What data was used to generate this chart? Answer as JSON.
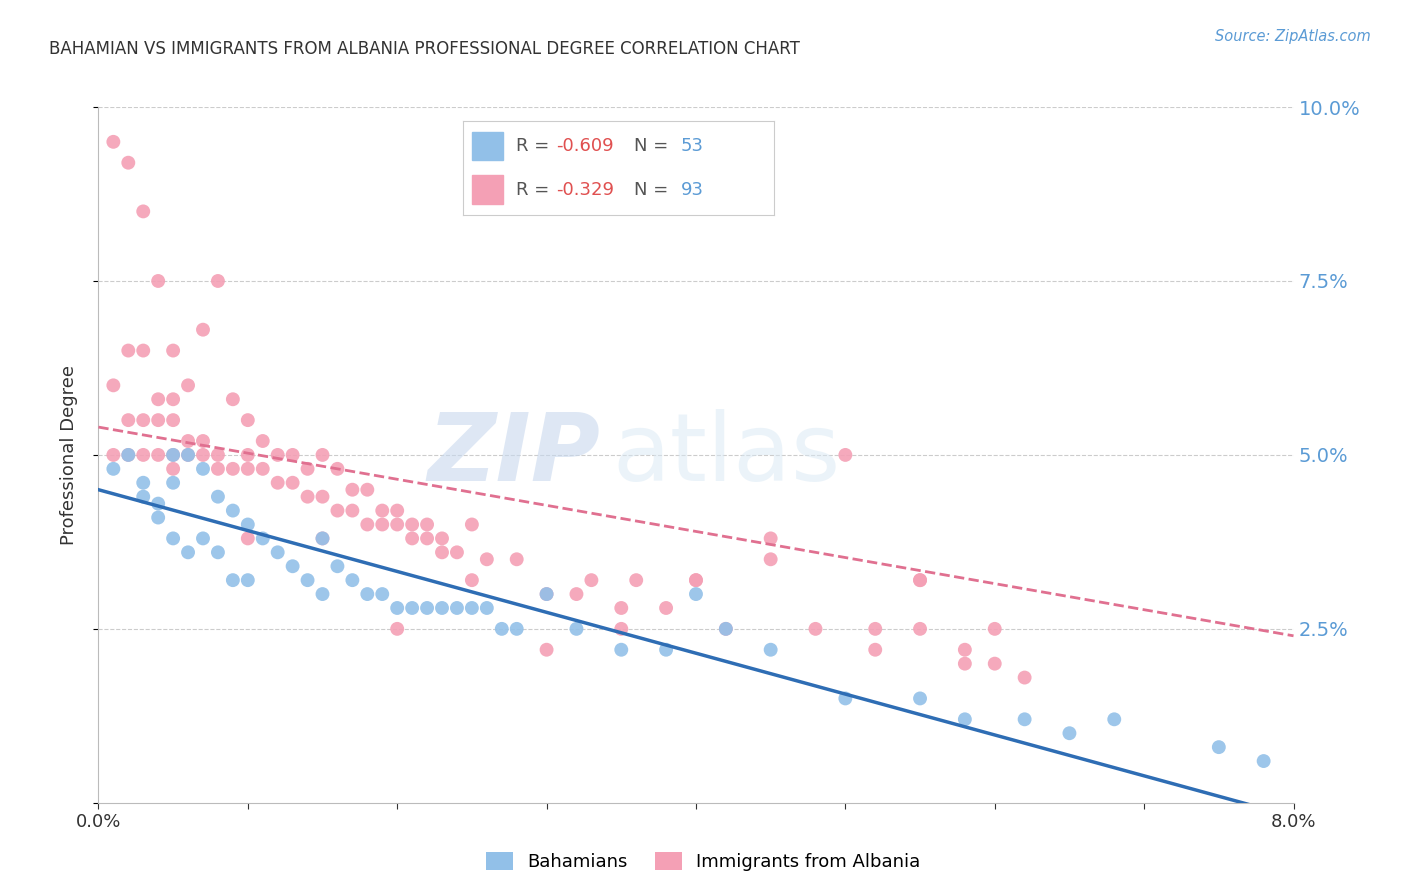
{
  "title": "BAHAMIAN VS IMMIGRANTS FROM ALBANIA PROFESSIONAL DEGREE CORRELATION CHART",
  "source": "Source: ZipAtlas.com",
  "ylabel": "Professional Degree",
  "x_min": 0.0,
  "x_max": 0.08,
  "y_min": 0.0,
  "y_max": 0.1,
  "bahamian_R": -0.609,
  "bahamian_N": 53,
  "albania_R": -0.329,
  "albania_N": 93,
  "bahamian_color": "#92C0E8",
  "albania_color": "#F4A0B5",
  "bahamian_line_color": "#2E6DB4",
  "albania_line_color": "#E07090",
  "legend_label_1": "Bahamians",
  "legend_label_2": "Immigrants from Albania",
  "watermark_zip": "ZIP",
  "watermark_atlas": "atlas",
  "bah_line_x0": 0.0,
  "bah_line_y0": 0.045,
  "bah_line_x1": 0.08,
  "bah_line_y1": -0.002,
  "alb_line_x0": 0.0,
  "alb_line_y0": 0.054,
  "alb_line_x1": 0.08,
  "alb_line_y1": 0.024,
  "bahamian_x": [
    0.001,
    0.002,
    0.003,
    0.003,
    0.004,
    0.004,
    0.005,
    0.005,
    0.005,
    0.006,
    0.006,
    0.007,
    0.007,
    0.008,
    0.008,
    0.009,
    0.009,
    0.01,
    0.01,
    0.011,
    0.012,
    0.013,
    0.014,
    0.015,
    0.015,
    0.016,
    0.017,
    0.018,
    0.019,
    0.02,
    0.021,
    0.022,
    0.023,
    0.024,
    0.025,
    0.026,
    0.027,
    0.028,
    0.03,
    0.032,
    0.035,
    0.038,
    0.04,
    0.042,
    0.045,
    0.05,
    0.055,
    0.058,
    0.062,
    0.065,
    0.068,
    0.075,
    0.078
  ],
  "bahamian_y": [
    0.048,
    0.05,
    0.046,
    0.044,
    0.043,
    0.041,
    0.05,
    0.046,
    0.038,
    0.05,
    0.036,
    0.048,
    0.038,
    0.044,
    0.036,
    0.042,
    0.032,
    0.04,
    0.032,
    0.038,
    0.036,
    0.034,
    0.032,
    0.038,
    0.03,
    0.034,
    0.032,
    0.03,
    0.03,
    0.028,
    0.028,
    0.028,
    0.028,
    0.028,
    0.028,
    0.028,
    0.025,
    0.025,
    0.03,
    0.025,
    0.022,
    0.022,
    0.03,
    0.025,
    0.022,
    0.015,
    0.015,
    0.012,
    0.012,
    0.01,
    0.012,
    0.008,
    0.006
  ],
  "albania_x": [
    0.001,
    0.001,
    0.001,
    0.002,
    0.002,
    0.002,
    0.002,
    0.003,
    0.003,
    0.003,
    0.003,
    0.004,
    0.004,
    0.004,
    0.004,
    0.005,
    0.005,
    0.005,
    0.005,
    0.006,
    0.006,
    0.006,
    0.007,
    0.007,
    0.007,
    0.008,
    0.008,
    0.008,
    0.009,
    0.009,
    0.01,
    0.01,
    0.01,
    0.011,
    0.011,
    0.012,
    0.012,
    0.013,
    0.013,
    0.014,
    0.014,
    0.015,
    0.015,
    0.016,
    0.016,
    0.017,
    0.017,
    0.018,
    0.018,
    0.019,
    0.019,
    0.02,
    0.02,
    0.021,
    0.021,
    0.022,
    0.022,
    0.023,
    0.023,
    0.024,
    0.025,
    0.026,
    0.028,
    0.03,
    0.032,
    0.033,
    0.035,
    0.036,
    0.038,
    0.04,
    0.042,
    0.045,
    0.048,
    0.05,
    0.052,
    0.055,
    0.055,
    0.058,
    0.06,
    0.062,
    0.055,
    0.06,
    0.058,
    0.052,
    0.045,
    0.04,
    0.035,
    0.03,
    0.025,
    0.02,
    0.015,
    0.01,
    0.005
  ],
  "albania_y": [
    0.05,
    0.06,
    0.095,
    0.05,
    0.055,
    0.065,
    0.092,
    0.05,
    0.055,
    0.065,
    0.085,
    0.05,
    0.055,
    0.058,
    0.075,
    0.05,
    0.055,
    0.058,
    0.065,
    0.05,
    0.052,
    0.06,
    0.05,
    0.052,
    0.068,
    0.048,
    0.05,
    0.075,
    0.048,
    0.058,
    0.048,
    0.05,
    0.055,
    0.048,
    0.052,
    0.046,
    0.05,
    0.046,
    0.05,
    0.044,
    0.048,
    0.044,
    0.05,
    0.042,
    0.048,
    0.042,
    0.045,
    0.04,
    0.045,
    0.04,
    0.042,
    0.04,
    0.042,
    0.038,
    0.04,
    0.038,
    0.04,
    0.036,
    0.038,
    0.036,
    0.04,
    0.035,
    0.035,
    0.03,
    0.03,
    0.032,
    0.028,
    0.032,
    0.028,
    0.032,
    0.025,
    0.035,
    0.025,
    0.05,
    0.022,
    0.025,
    0.032,
    0.02,
    0.025,
    0.018,
    0.032,
    0.02,
    0.022,
    0.025,
    0.038,
    0.032,
    0.025,
    0.022,
    0.032,
    0.025,
    0.038,
    0.038,
    0.048
  ]
}
